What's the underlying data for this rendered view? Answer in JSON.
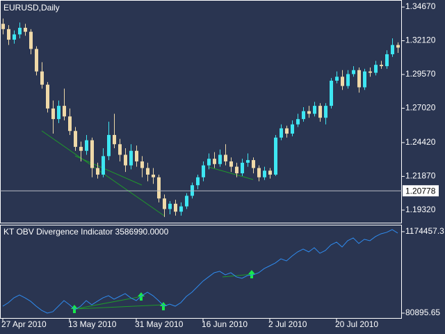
{
  "chart_data": [
    {
      "type": "candlestick",
      "title": "EURUSD,Daily",
      "categories": [
        "27 Apr 2010",
        null,
        null,
        null,
        null,
        null,
        null,
        null,
        null,
        null,
        null,
        null,
        "13 May 2010",
        null,
        null,
        null,
        null,
        null,
        null,
        null,
        null,
        null,
        null,
        null,
        "31 May 2010",
        null,
        null,
        null,
        null,
        null,
        null,
        null,
        null,
        null,
        null,
        null,
        "16 Jun 2010",
        null,
        null,
        null,
        null,
        null,
        null,
        null,
        null,
        null,
        null,
        null,
        "2 Jul 2010",
        null,
        null,
        null,
        null,
        null,
        null,
        null,
        null,
        null,
        null,
        null,
        "20 Jul 2010",
        null,
        null,
        null,
        null,
        null,
        null,
        null,
        null,
        null,
        null,
        null
      ],
      "open": [
        1.334,
        1.33,
        1.322,
        1.326,
        1.331,
        1.328,
        1.315,
        1.298,
        1.288,
        1.27,
        1.262,
        1.272,
        1.264,
        1.253,
        1.241,
        1.238,
        1.246,
        1.225,
        1.22,
        1.234,
        1.25,
        1.243,
        1.235,
        1.227,
        1.238,
        1.23,
        1.225,
        1.22,
        1.218,
        1.202,
        1.194,
        1.198,
        1.192,
        1.196,
        1.204,
        1.212,
        1.218,
        1.227,
        1.232,
        1.228,
        1.235,
        1.23,
        1.226,
        1.221,
        1.229,
        1.231,
        1.225,
        1.218,
        1.223,
        1.22,
        1.248,
        1.255,
        1.251,
        1.258,
        1.262,
        1.268,
        1.266,
        1.272,
        1.263,
        1.272,
        1.291,
        1.294,
        1.287,
        1.296,
        1.299,
        1.286,
        1.298,
        1.297,
        1.303,
        1.302,
        1.311,
        1.318
      ],
      "high": [
        1.338,
        1.333,
        1.329,
        1.335,
        1.334,
        1.33,
        1.317,
        1.305,
        1.29,
        1.276,
        1.276,
        1.285,
        1.27,
        1.256,
        1.245,
        1.25,
        1.248,
        1.229,
        1.24,
        1.26,
        1.266,
        1.247,
        1.24,
        1.243,
        1.242,
        1.234,
        1.229,
        1.225,
        1.22,
        1.205,
        1.2,
        1.201,
        1.199,
        1.206,
        1.214,
        1.22,
        1.23,
        1.236,
        1.237,
        1.239,
        1.243,
        1.233,
        1.229,
        1.232,
        1.236,
        1.233,
        1.227,
        1.226,
        1.225,
        1.25,
        1.258,
        1.257,
        1.261,
        1.266,
        1.271,
        1.272,
        1.275,
        1.274,
        1.274,
        1.293,
        1.298,
        1.299,
        1.299,
        1.302,
        1.301,
        1.3,
        1.301,
        1.306,
        1.306,
        1.314,
        1.323,
        1.32
      ],
      "low": [
        1.326,
        1.318,
        1.319,
        1.323,
        1.325,
        1.311,
        1.295,
        1.285,
        1.267,
        1.251,
        1.259,
        1.261,
        1.25,
        1.238,
        1.23,
        1.235,
        1.218,
        1.217,
        1.218,
        1.231,
        1.24,
        1.23,
        1.222,
        1.224,
        1.226,
        1.218,
        1.215,
        1.213,
        1.199,
        1.188,
        1.19,
        1.189,
        1.189,
        1.194,
        1.202,
        1.209,
        1.215,
        1.224,
        1.225,
        1.226,
        1.227,
        1.222,
        1.218,
        1.219,
        1.226,
        1.221,
        1.215,
        1.216,
        1.217,
        1.219,
        1.246,
        1.248,
        1.249,
        1.256,
        1.26,
        1.263,
        1.264,
        1.26,
        1.258,
        1.27,
        1.289,
        1.284,
        1.285,
        1.294,
        1.282,
        1.284,
        1.294,
        1.295,
        1.3,
        1.3,
        1.309,
        1.312
      ],
      "close": [
        1.33,
        1.322,
        1.326,
        1.331,
        1.328,
        1.315,
        1.298,
        1.288,
        1.27,
        1.262,
        1.272,
        1.264,
        1.253,
        1.241,
        1.238,
        1.246,
        1.225,
        1.22,
        1.234,
        1.25,
        1.243,
        1.235,
        1.227,
        1.238,
        1.23,
        1.225,
        1.22,
        1.218,
        1.202,
        1.194,
        1.198,
        1.192,
        1.196,
        1.204,
        1.212,
        1.218,
        1.227,
        1.232,
        1.228,
        1.235,
        1.23,
        1.226,
        1.221,
        1.229,
        1.231,
        1.225,
        1.218,
        1.223,
        1.22,
        1.248,
        1.255,
        1.251,
        1.258,
        1.262,
        1.268,
        1.266,
        1.272,
        1.263,
        1.272,
        1.291,
        1.294,
        1.287,
        1.296,
        1.299,
        1.286,
        1.298,
        1.297,
        1.303,
        1.302,
        1.311,
        1.318,
        1.316
      ],
      "up_color": "#3ee6f2",
      "down_color": "#efd9a8",
      "ylim": [
        1.1837,
        1.352
      ],
      "yticks": [
        {
          "value": 1.3467,
          "label": "1.34670"
        },
        {
          "value": 1.3212,
          "label": "1.32120"
        },
        {
          "value": 1.2957,
          "label": "1.29570"
        },
        {
          "value": 1.2702,
          "label": "1.27020"
        },
        {
          "value": 1.2442,
          "label": "1.24420"
        },
        {
          "value": 1.2187,
          "label": "1.21870"
        },
        {
          "value": 1.1932,
          "label": "1.19320"
        }
      ],
      "current_price": {
        "value": 1.20778,
        "label": "1.20778"
      }
    },
    {
      "type": "line",
      "title": "KT OBV Divergence Indicator 3586990.0000",
      "values": [
        174000,
        221000,
        286000,
        324000,
        286000,
        240000,
        174000,
        118000,
        81000,
        100000,
        174000,
        249000,
        193000,
        128000,
        174000,
        249000,
        193000,
        240000,
        286000,
        315000,
        268000,
        305000,
        343000,
        286000,
        249000,
        315000,
        361000,
        315000,
        249000,
        174000,
        202000,
        174000,
        221000,
        305000,
        361000,
        436000,
        511000,
        567000,
        623000,
        642000,
        595000,
        623000,
        567000,
        548000,
        586000,
        595000,
        623000,
        679000,
        716000,
        754000,
        810000,
        782000,
        847000,
        903000,
        941000,
        903000,
        959000,
        885000,
        922000,
        997000,
        1034000,
        969000,
        1053000,
        1090000,
        1016000,
        1072000,
        1053000,
        1109000,
        1146000,
        1165000,
        1202000,
        1156000
      ],
      "color": "#2f8cf0",
      "ylim": [
        6000,
        1258000
      ],
      "yticks": [
        1174457.3,
        80895.65
      ]
    }
  ]
}
